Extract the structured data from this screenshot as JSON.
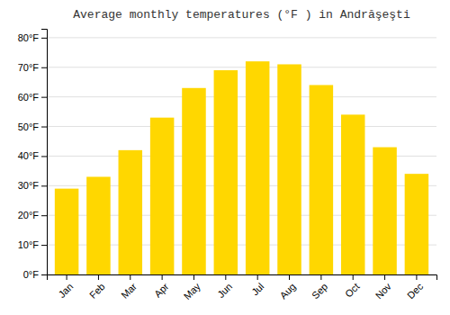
{
  "chart_data": {
    "type": "bar",
    "title": "Average monthly temperatures (°F ) in Andrăşeşti",
    "categories": [
      "Jan",
      "Feb",
      "Mar",
      "Apr",
      "May",
      "Jun",
      "Jul",
      "Aug",
      "Sep",
      "Oct",
      "Nov",
      "Dec"
    ],
    "values": [
      29,
      33,
      42,
      53,
      63,
      69,
      72,
      71,
      64,
      54,
      43,
      34
    ],
    "color": "#FFD700",
    "ylim": [
      0,
      83
    ],
    "yticks": [
      {
        "value": 0,
        "label": "0°F"
      },
      {
        "value": 10,
        "label": "10°F"
      },
      {
        "value": 20,
        "label": "20°F"
      },
      {
        "value": 30,
        "label": "30°F"
      },
      {
        "value": 40,
        "label": "40°F"
      },
      {
        "value": 50,
        "label": "50°F"
      },
      {
        "value": 60,
        "label": "60°F"
      },
      {
        "value": 70,
        "label": "70°F"
      },
      {
        "value": 80,
        "label": "80°F"
      }
    ],
    "grid": true
  }
}
